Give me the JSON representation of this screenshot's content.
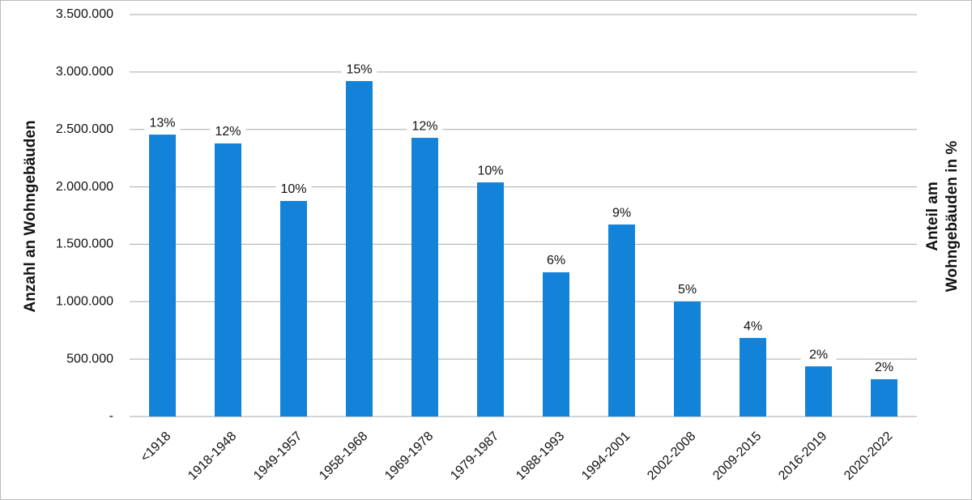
{
  "chart_data": {
    "type": "bar",
    "ylabel": "Anzahl an Wohngebäuden",
    "y2label": [
      "Anteil am",
      "Wohngebäuden in %"
    ],
    "categories": [
      "<1918",
      "1918-1948",
      "1949-1957",
      "1958-1968",
      "1969-1978",
      "1979-1987",
      "1988-1993",
      "1994-2001",
      "2002-2008",
      "2009-2015",
      "2016-2019",
      "2020-2022"
    ],
    "values": [
      2455000,
      2378000,
      1877000,
      2921000,
      2427000,
      2039000,
      1256000,
      1672000,
      1002000,
      684000,
      437000,
      325000
    ],
    "labels": [
      "13%",
      "12%",
      "10%",
      "15%",
      "12%",
      "10%",
      "6%",
      "9%",
      "5%",
      "4%",
      "2%",
      "2%"
    ],
    "color": "#1283d9",
    "ylim": [
      0,
      3500000
    ],
    "yticks": [
      {
        "value": 0,
        "label": "-"
      },
      {
        "value": 500000,
        "label": "500.000"
      },
      {
        "value": 1000000,
        "label": "1.000.000"
      },
      {
        "value": 1500000,
        "label": "1.500.000"
      },
      {
        "value": 2000000,
        "label": "2.000.000"
      },
      {
        "value": 2500000,
        "label": "2.500.000"
      },
      {
        "value": 3000000,
        "label": "3.000.000"
      },
      {
        "value": 3500000,
        "label": "3.500.000"
      }
    ],
    "grid": true
  }
}
